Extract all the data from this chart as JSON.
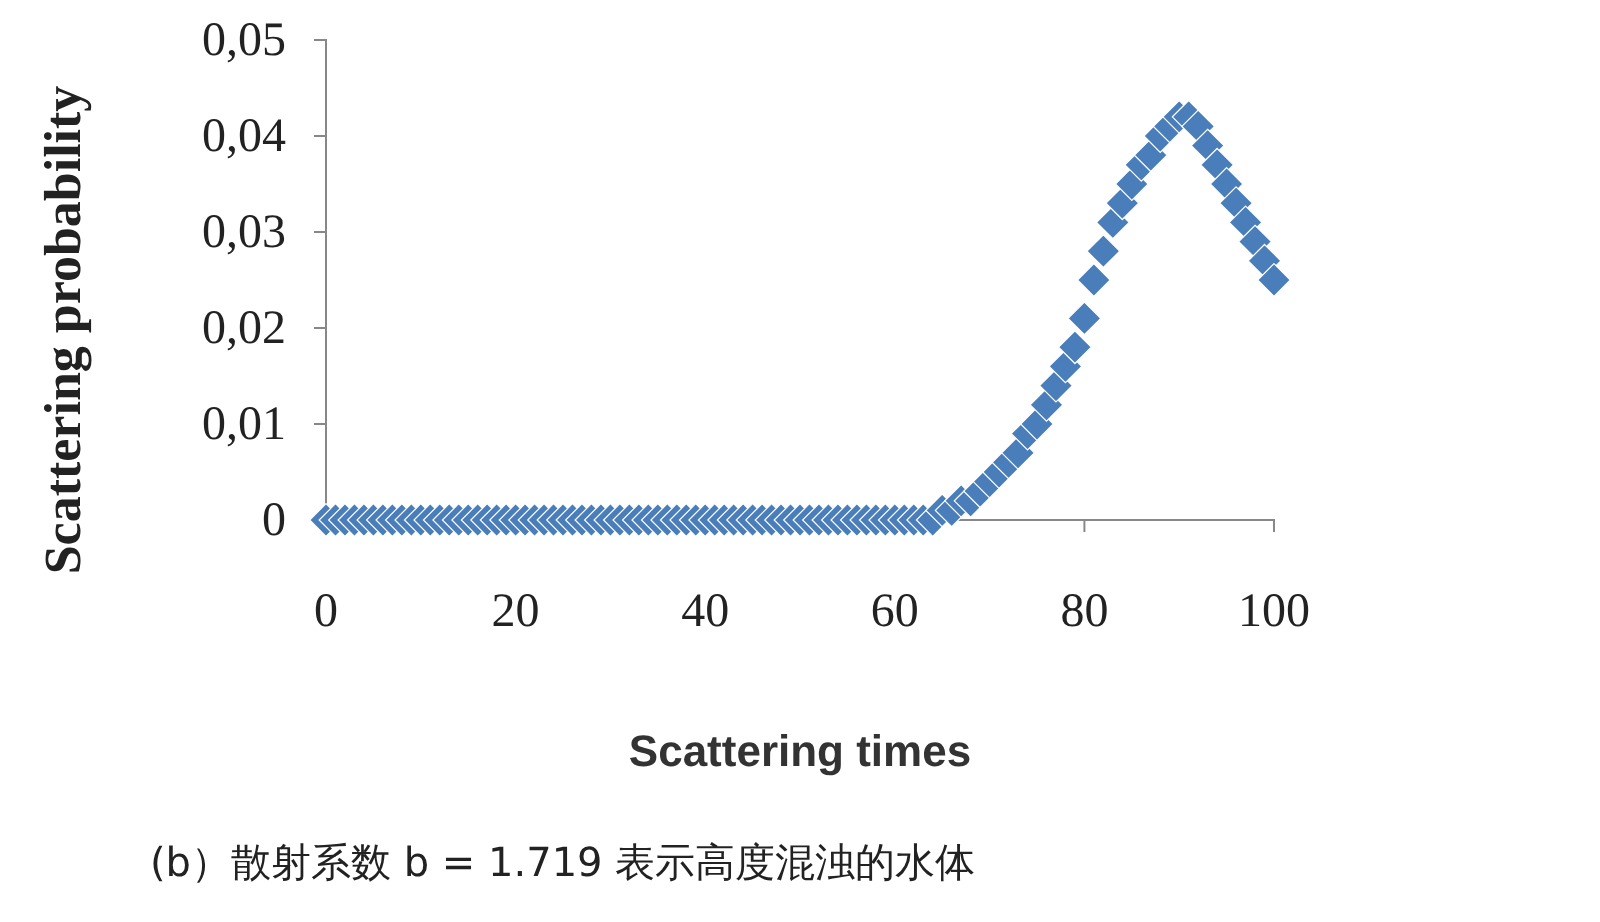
{
  "chart_data": {
    "type": "scatter",
    "xlabel": "Scattering times",
    "ylabel": "Scattering probability",
    "annotations": [
      "(b）散射系数 b = 1.719 表示高度混浊的水体"
    ],
    "x": [
      0,
      1,
      2,
      3,
      4,
      5,
      6,
      7,
      8,
      9,
      10,
      11,
      12,
      13,
      14,
      15,
      16,
      17,
      18,
      19,
      20,
      21,
      22,
      23,
      24,
      25,
      26,
      27,
      28,
      29,
      30,
      31,
      32,
      33,
      34,
      35,
      36,
      37,
      38,
      39,
      40,
      41,
      42,
      43,
      44,
      45,
      46,
      47,
      48,
      49,
      50,
      51,
      52,
      53,
      54,
      55,
      56,
      57,
      58,
      59,
      60,
      61,
      62,
      63,
      64,
      65,
      66,
      67,
      68,
      69,
      70,
      71,
      72,
      73,
      74,
      75,
      76,
      77,
      78,
      79,
      80,
      81,
      82,
      83,
      84,
      85,
      86,
      87,
      88,
      89,
      90,
      91,
      92,
      93,
      94,
      95,
      96,
      97,
      98,
      99,
      100
    ],
    "series": [
      {
        "color": "#4a7ebb",
        "values": [
          0,
          0,
          0,
          0,
          0,
          0,
          0,
          0,
          0,
          0,
          0,
          0,
          0,
          0,
          0,
          0,
          0,
          0,
          0,
          0,
          0,
          0,
          0,
          0,
          0,
          0,
          0,
          0,
          0,
          0,
          0,
          0,
          0,
          0,
          0,
          0,
          0,
          0,
          0,
          0,
          0,
          0,
          0,
          0,
          0,
          0,
          0,
          0,
          0,
          0,
          0,
          0,
          0,
          0,
          0,
          0,
          0,
          0,
          0,
          0,
          0,
          0,
          0,
          0,
          0,
          0.001,
          0.001,
          0.002,
          0.002,
          0.003,
          0.004,
          0.005,
          0.006,
          0.007,
          0.009,
          0.01,
          0.012,
          0.014,
          0.016,
          0.018,
          0.021,
          0.025,
          0.028,
          0.031,
          0.033,
          0.035,
          0.037,
          0.038,
          0.04,
          0.041,
          0.042,
          0.042,
          0.041,
          0.039,
          0.037,
          0.035,
          0.033,
          0.031,
          0.029,
          0.027,
          0.025
        ]
      }
    ],
    "marker": "diamond",
    "xlim": [
      0,
      100
    ],
    "xticks": [
      0,
      20,
      40,
      60,
      80,
      100
    ],
    "ylim": [
      0,
      0.05
    ],
    "yticks": [
      0,
      {
        "value": 0.01,
        "label": "0,01"
      },
      {
        "value": 0.02,
        "label": "0,02"
      },
      {
        "value": 0.03,
        "label": "0,03"
      },
      {
        "value": 0.04,
        "label": "0,04"
      },
      {
        "value": 0.05,
        "label": "0,05"
      }
    ],
    "grid": false,
    "legend": false
  }
}
